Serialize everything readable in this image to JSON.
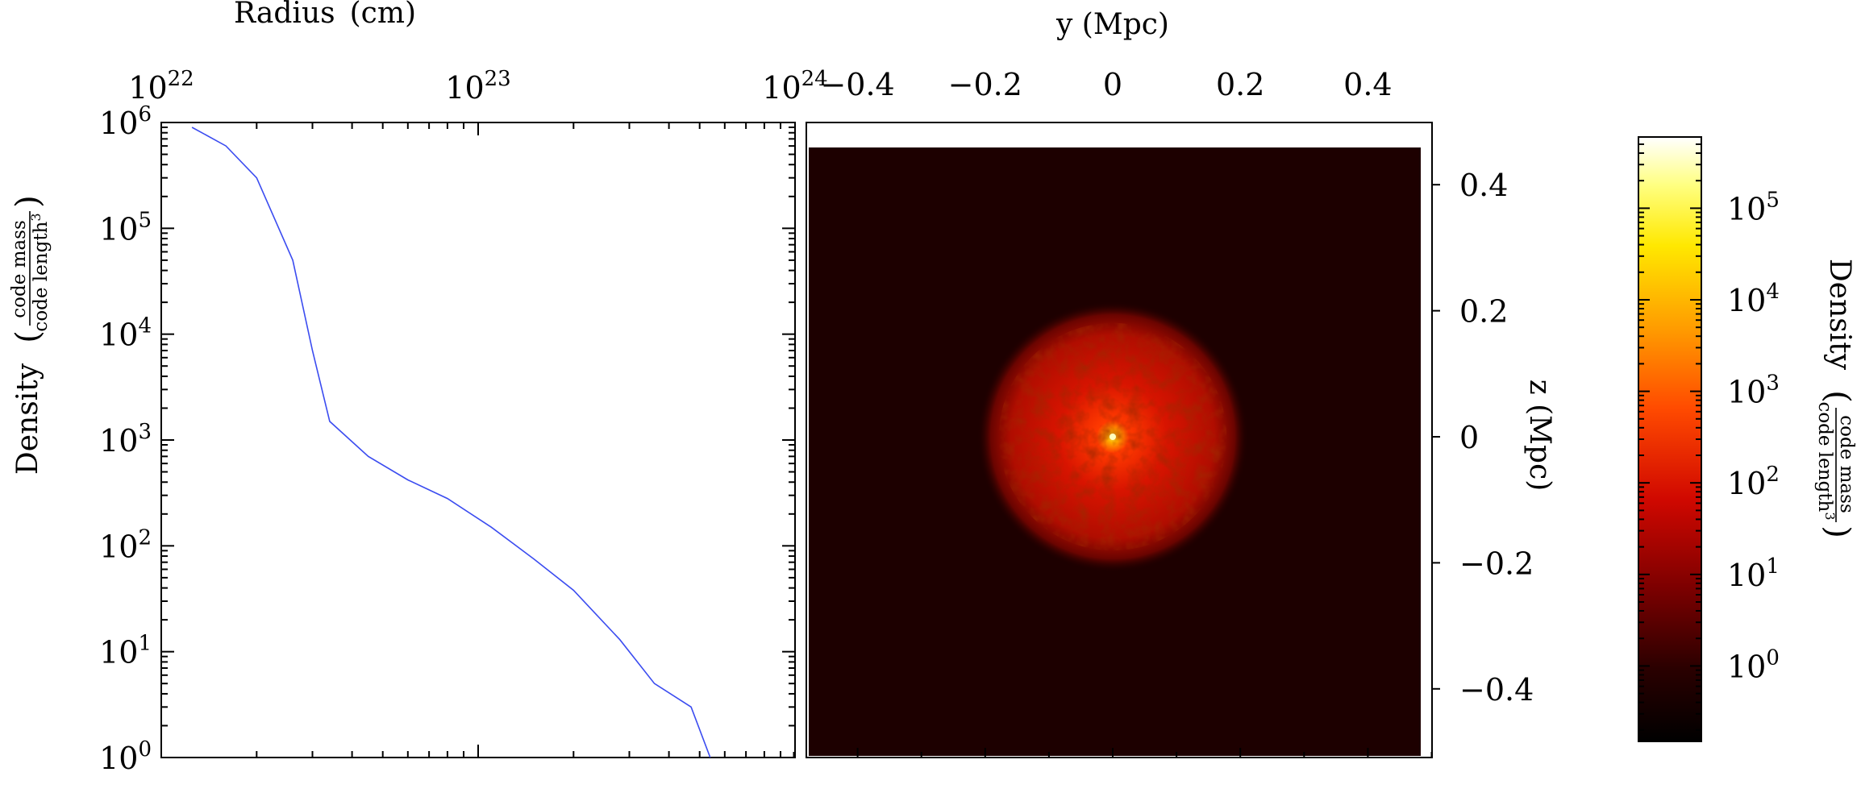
{
  "chart_data": [
    {
      "type": "line",
      "xscale": "log",
      "yscale": "log",
      "xlim": [
        1e+22,
        1e+24
      ],
      "ylim": [
        1,
        1000000
      ],
      "xlabel": "Radius",
      "xunit": "(cm)",
      "ylabel": "Density",
      "yunit_num": "code mass",
      "yunit_den": "code length",
      "yunit_den_exp": "3",
      "x_tick_labels": [
        {
          "base": "10",
          "exp": "22",
          "value": 1e+22
        },
        {
          "base": "10",
          "exp": "23",
          "value": 1e+23
        },
        {
          "base": "10",
          "exp": "24",
          "value": 1e+24
        }
      ],
      "y_tick_labels": [
        {
          "base": "10",
          "exp": "0",
          "value": 1
        },
        {
          "base": "10",
          "exp": "1",
          "value": 10
        },
        {
          "base": "10",
          "exp": "2",
          "value": 100
        },
        {
          "base": "10",
          "exp": "3",
          "value": 1000
        },
        {
          "base": "10",
          "exp": "4",
          "value": 10000
        },
        {
          "base": "10",
          "exp": "5",
          "value": 100000
        },
        {
          "base": "10",
          "exp": "6",
          "value": 1000000
        }
      ],
      "series": [
        {
          "color": "#3b4cf0",
          "x": [
            1.25e+22,
            1.6e+22,
            2e+22,
            2.6e+22,
            3e+22,
            3.4e+22,
            4.5e+22,
            6e+22,
            8e+22,
            1.1e+23,
            1.5e+23,
            2e+23,
            2.8e+23,
            3.6e+23,
            4.7e+23,
            5.4e+23
          ],
          "y": [
            900000,
            600000,
            300000,
            50000,
            7000,
            1500,
            700,
            420,
            280,
            150,
            75,
            38,
            13,
            5,
            3,
            1
          ]
        }
      ]
    },
    {
      "type": "heatmap",
      "xlabel": "y (Mpc)",
      "ylabel": "z (Mpc)",
      "x_tick_labels": [
        "−0.4",
        "−0.2",
        "0",
        "0.2",
        "0.4"
      ],
      "x_ticks": [
        -0.4,
        -0.2,
        0,
        0.2,
        0.4
      ],
      "y_tick_labels": [
        "0.4",
        "0.2",
        "0",
        "−0.2",
        "−0.4"
      ],
      "y_ticks": [
        0.4,
        0.2,
        0,
        -0.2,
        -0.4
      ],
      "xlim": [
        -0.5,
        0.5
      ],
      "ylim": [
        -0.5,
        0.5
      ],
      "background_color": "#1d0000",
      "blob": {
        "center_y": 0.0,
        "center_z": 0.0,
        "radius": 0.17
      },
      "colormap": [
        "#000000",
        "#3a0000",
        "#8a0000",
        "#dd1000",
        "#ff6a00",
        "#ffc000",
        "#ffff30",
        "#ffffe8"
      ],
      "colorbar": {
        "scale": "log",
        "label": "Density",
        "unit_num": "code mass",
        "unit_den": "code length",
        "unit_den_exp": "3",
        "range": [
          0.15,
          600000
        ],
        "tick_labels": [
          {
            "base": "10",
            "exp": "0",
            "value": 1
          },
          {
            "base": "10",
            "exp": "1",
            "value": 10
          },
          {
            "base": "10",
            "exp": "2",
            "value": 100
          },
          {
            "base": "10",
            "exp": "3",
            "value": 1000
          },
          {
            "base": "10",
            "exp": "4",
            "value": 10000
          },
          {
            "base": "10",
            "exp": "5",
            "value": 100000
          }
        ]
      }
    }
  ]
}
